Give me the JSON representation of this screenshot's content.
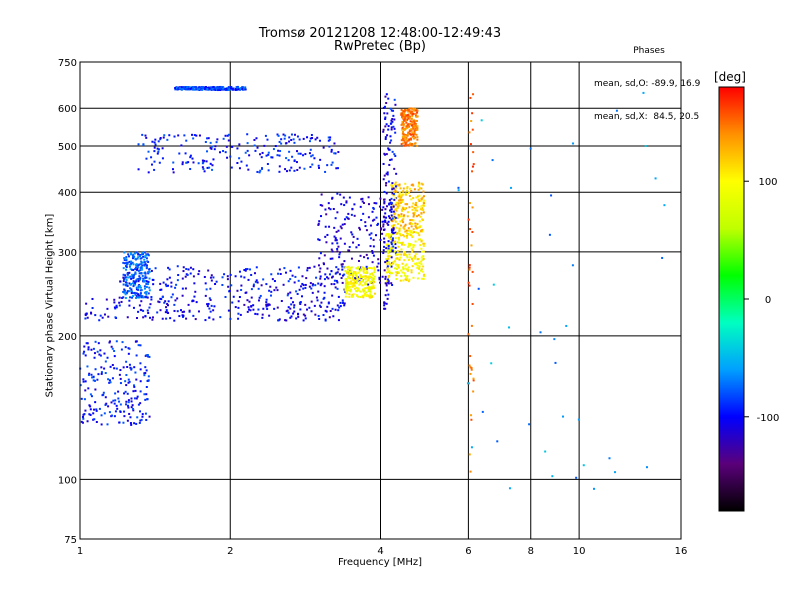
{
  "chart_data": {
    "type": "scatter",
    "title": "Tromsø 20121208 12:48:00-12:49:43",
    "subtitle": "RwPretec (Bp)",
    "xlabel": "Frequency [MHz]",
    "ylabel": "Stationary phase Virtual Height [km]",
    "x_scale": "log",
    "y_scale": "log",
    "xlim": [
      1,
      16
    ],
    "ylim": [
      75,
      750
    ],
    "x_ticks": [
      1,
      2,
      4,
      6,
      8,
      10,
      16
    ],
    "x_tick_labels": [
      "1",
      "2",
      "4",
      "6",
      "8",
      "10",
      "16"
    ],
    "y_ticks": [
      75,
      100,
      200,
      300,
      400,
      500,
      600,
      750
    ],
    "y_tick_labels": [
      "75",
      "100",
      "200",
      "300",
      "400",
      "500",
      "600",
      "750"
    ],
    "grid": true,
    "stats": {
      "heading": "Phases",
      "line1": "mean, sd,O: -89.9, 16.9",
      "line2": "mean, sd,X:  84.5, 20.5"
    },
    "colorbar": {
      "label": "[deg]",
      "range": [
        -180,
        180
      ],
      "ticks": [
        100,
        0,
        -100
      ],
      "tick_labels": [
        "100",
        "0",
        "-100"
      ],
      "colors": [
        "#000000",
        "#5a007a",
        "#0000ff",
        "#00a0ff",
        "#00ffc0",
        "#00ff00",
        "#c0ff00",
        "#ffff00",
        "#ff9000",
        "#ff0000"
      ]
    },
    "series": [
      {
        "x": [
          1.02,
          3.4
        ],
        "y": [
          215,
          240
        ],
        "phase": -105,
        "kind": "band"
      },
      {
        "x": [
          1.2,
          3.5
        ],
        "y": [
          240,
          280
        ],
        "phase": -100,
        "kind": "band"
      },
      {
        "x": [
          1.22,
          1.38
        ],
        "y": [
          240,
          300
        ],
        "phase": -75,
        "kind": "band"
      },
      {
        "x": [
          1.3,
          3.3
        ],
        "y": [
          440,
          530
        ],
        "phase": -95,
        "kind": "band"
      },
      {
        "x": [
          1.55,
          2.15
        ],
        "y": [
          655,
          665
        ],
        "phase": -85,
        "kind": "band"
      },
      {
        "x": [
          1.0,
          1.38
        ],
        "y": [
          130,
          195
        ],
        "phase": -95,
        "kind": "band"
      },
      {
        "x": [
          3.0,
          4.3
        ],
        "y": [
          255,
          400
        ],
        "phase": -110,
        "kind": "band"
      },
      {
        "x": [
          3.4,
          3.9
        ],
        "y": [
          240,
          280
        ],
        "phase": 95,
        "kind": "band"
      },
      {
        "x": [
          4.1,
          4.9
        ],
        "y": [
          260,
          330
        ],
        "phase": 100,
        "kind": "band"
      },
      {
        "x": [
          4.2,
          4.9
        ],
        "y": [
          330,
          420
        ],
        "phase": 120,
        "kind": "band"
      },
      {
        "x": [
          4.05,
          4.15
        ],
        "y": [
          220,
          650
        ],
        "phase": -110,
        "kind": "vertical"
      },
      {
        "x": [
          4.15,
          4.3
        ],
        "y": [
          300,
          640
        ],
        "phase": -100,
        "kind": "vertical"
      },
      {
        "x": [
          4.4,
          4.75
        ],
        "y": [
          500,
          600
        ],
        "phase": 145,
        "kind": "band"
      },
      {
        "x": [
          6.0,
          6.15
        ],
        "y": [
          95,
          650
        ],
        "phase": 150,
        "kind": "sparse"
      },
      {
        "x": [
          5.5,
          15.0
        ],
        "y": [
          95,
          650
        ],
        "phase": -60,
        "kind": "sparse"
      }
    ]
  }
}
